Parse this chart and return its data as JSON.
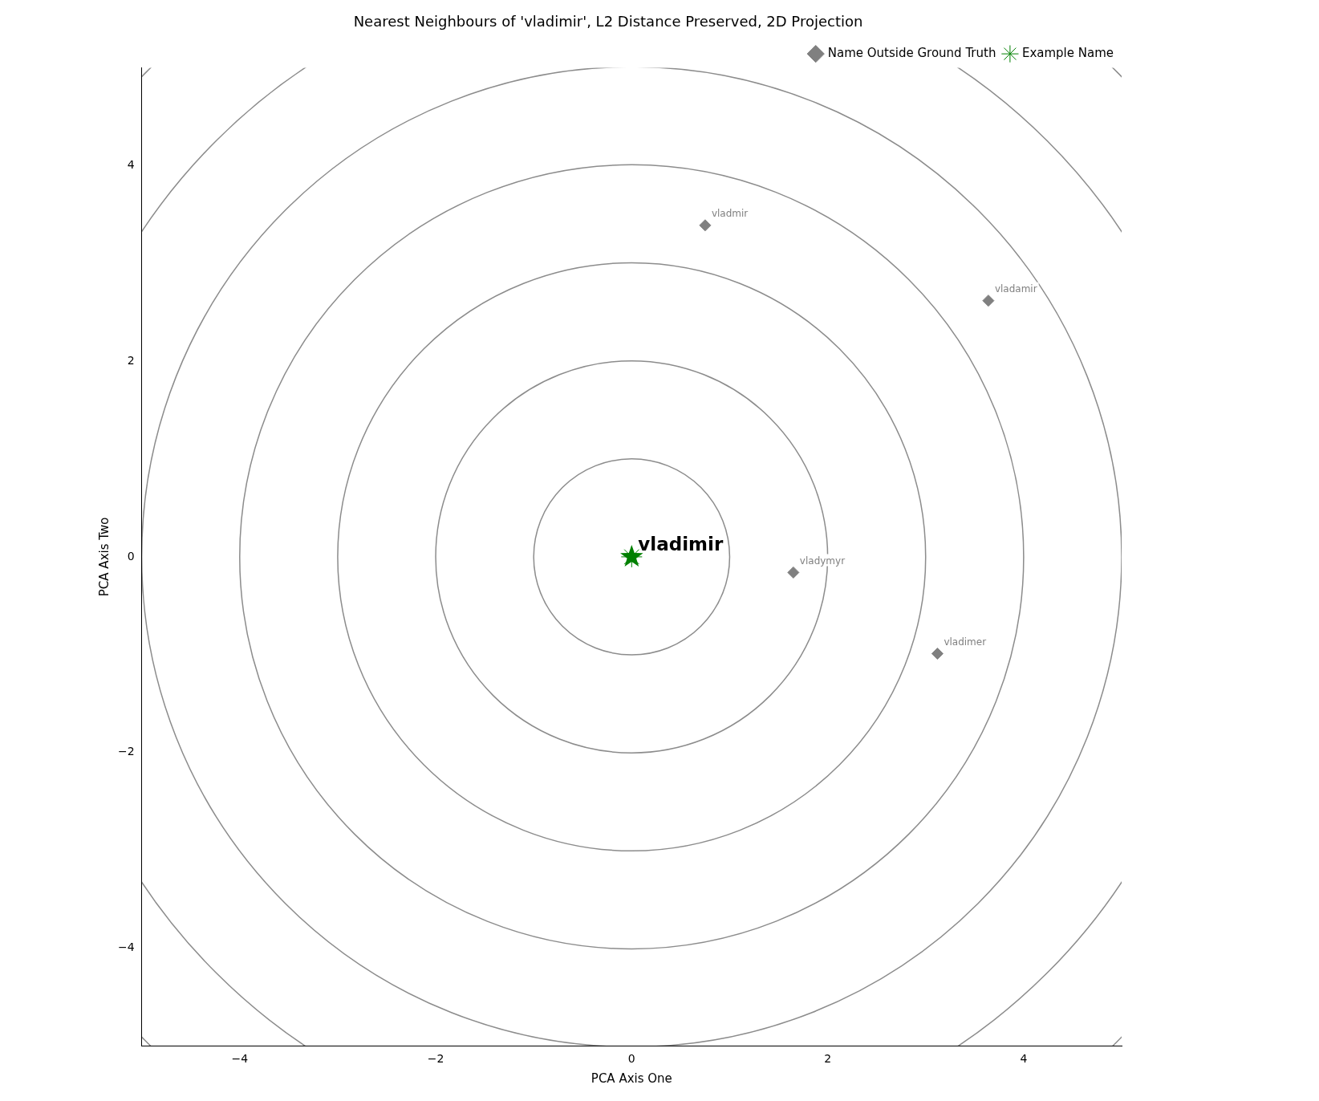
{
  "chart_data": {
    "type": "scatter",
    "title": "Nearest Neighbours of 'vladimir', L2 Distance Preserved, 2D Projection",
    "xlabel": "PCA Axis One",
    "ylabel": "PCA Axis Two",
    "series": [
      {
        "name": "Name Outside Ground Truth",
        "color": "#808080",
        "marker": "diamond",
        "x": [
          0.75,
          3.64,
          1.65,
          3.12
        ],
        "values": [
          3.39,
          2.62,
          -0.16,
          -0.99
        ]
      },
      {
        "name": "Example Name",
        "color": "#008000",
        "marker": "star",
        "x": [
          0
        ],
        "values": [
          0
        ]
      }
    ],
    "annotations": [
      {
        "text": "vladmir",
        "x": 0.75,
        "y": 3.39
      },
      {
        "text": "vladamir",
        "x": 3.64,
        "y": 2.62
      },
      {
        "text": "vladymyr",
        "x": 1.65,
        "y": -0.16
      },
      {
        "text": "vladimer",
        "x": 3.12,
        "y": -0.99
      },
      {
        "text": "vladimir",
        "x": 0,
        "y": 0
      }
    ],
    "xlim": [
      -5,
      5
    ],
    "ylim": [
      -5,
      5
    ],
    "xticks": [
      {
        "value": -4,
        "label": "−4"
      },
      {
        "value": -2,
        "label": "−2"
      },
      0,
      2,
      4
    ],
    "yticks": [
      {
        "value": -4,
        "label": "−4"
      },
      {
        "value": -2,
        "label": "−2"
      },
      0,
      2,
      4
    ],
    "grid": false,
    "legend": "top right"
  }
}
